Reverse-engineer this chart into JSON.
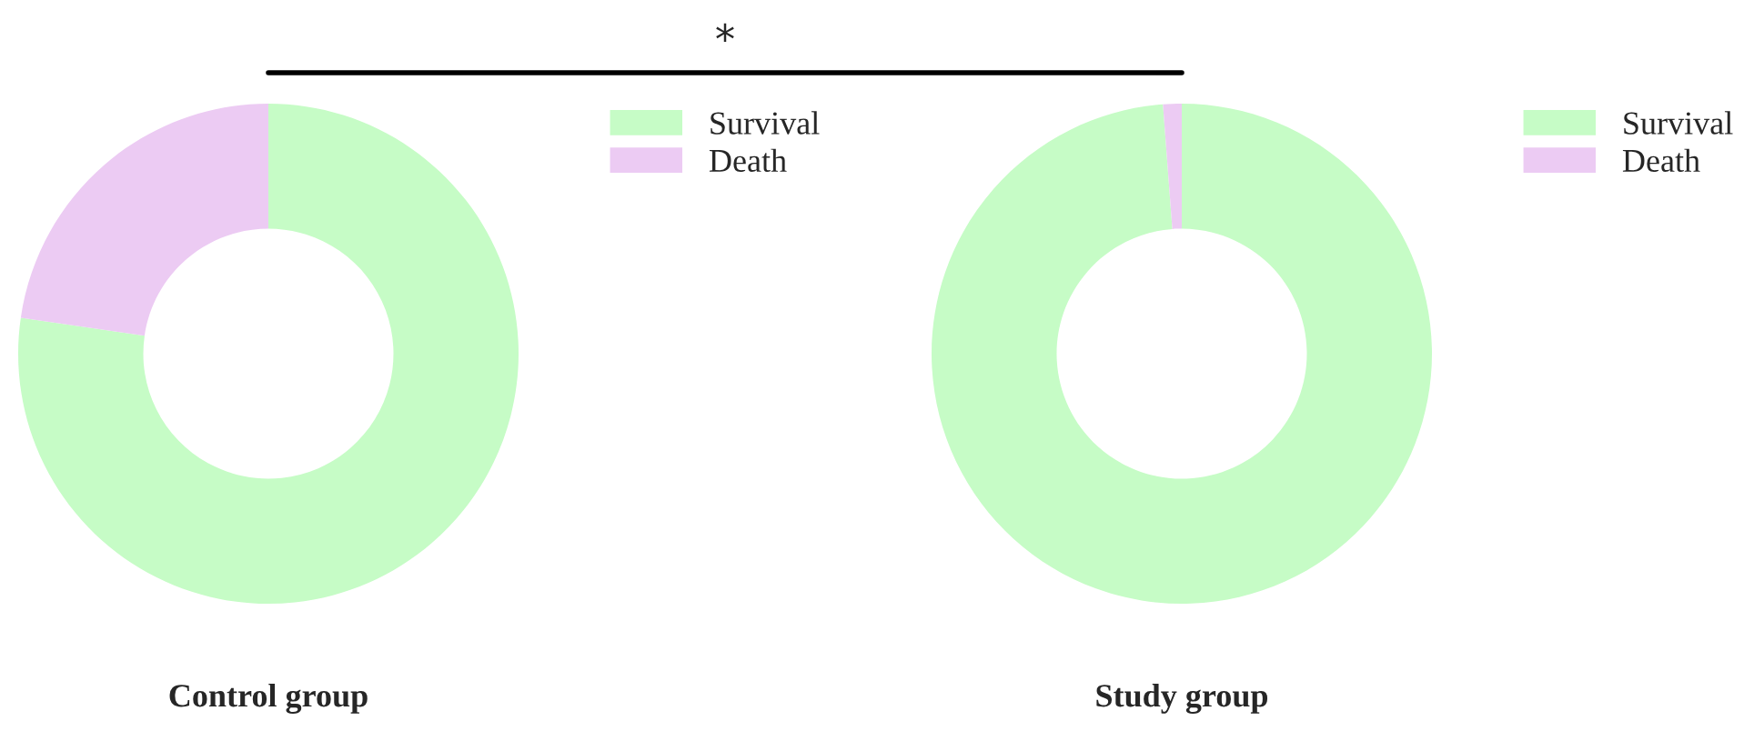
{
  "chart_data": [
    {
      "type": "donut",
      "title": "Control group",
      "categories": [
        "Survival",
        "Death"
      ],
      "values": [
        77.3,
        22.7
      ],
      "colors": [
        "#c6fcc6",
        "#eccbf3"
      ],
      "legend": "top right",
      "annotations": [
        "*"
      ]
    },
    {
      "type": "donut",
      "title": "Study group",
      "categories": [
        "Survival",
        "Death"
      ],
      "values": [
        98.8,
        1.2
      ],
      "colors": [
        "#c6fcc6",
        "#eccbf3"
      ],
      "legend": "top right"
    }
  ]
}
